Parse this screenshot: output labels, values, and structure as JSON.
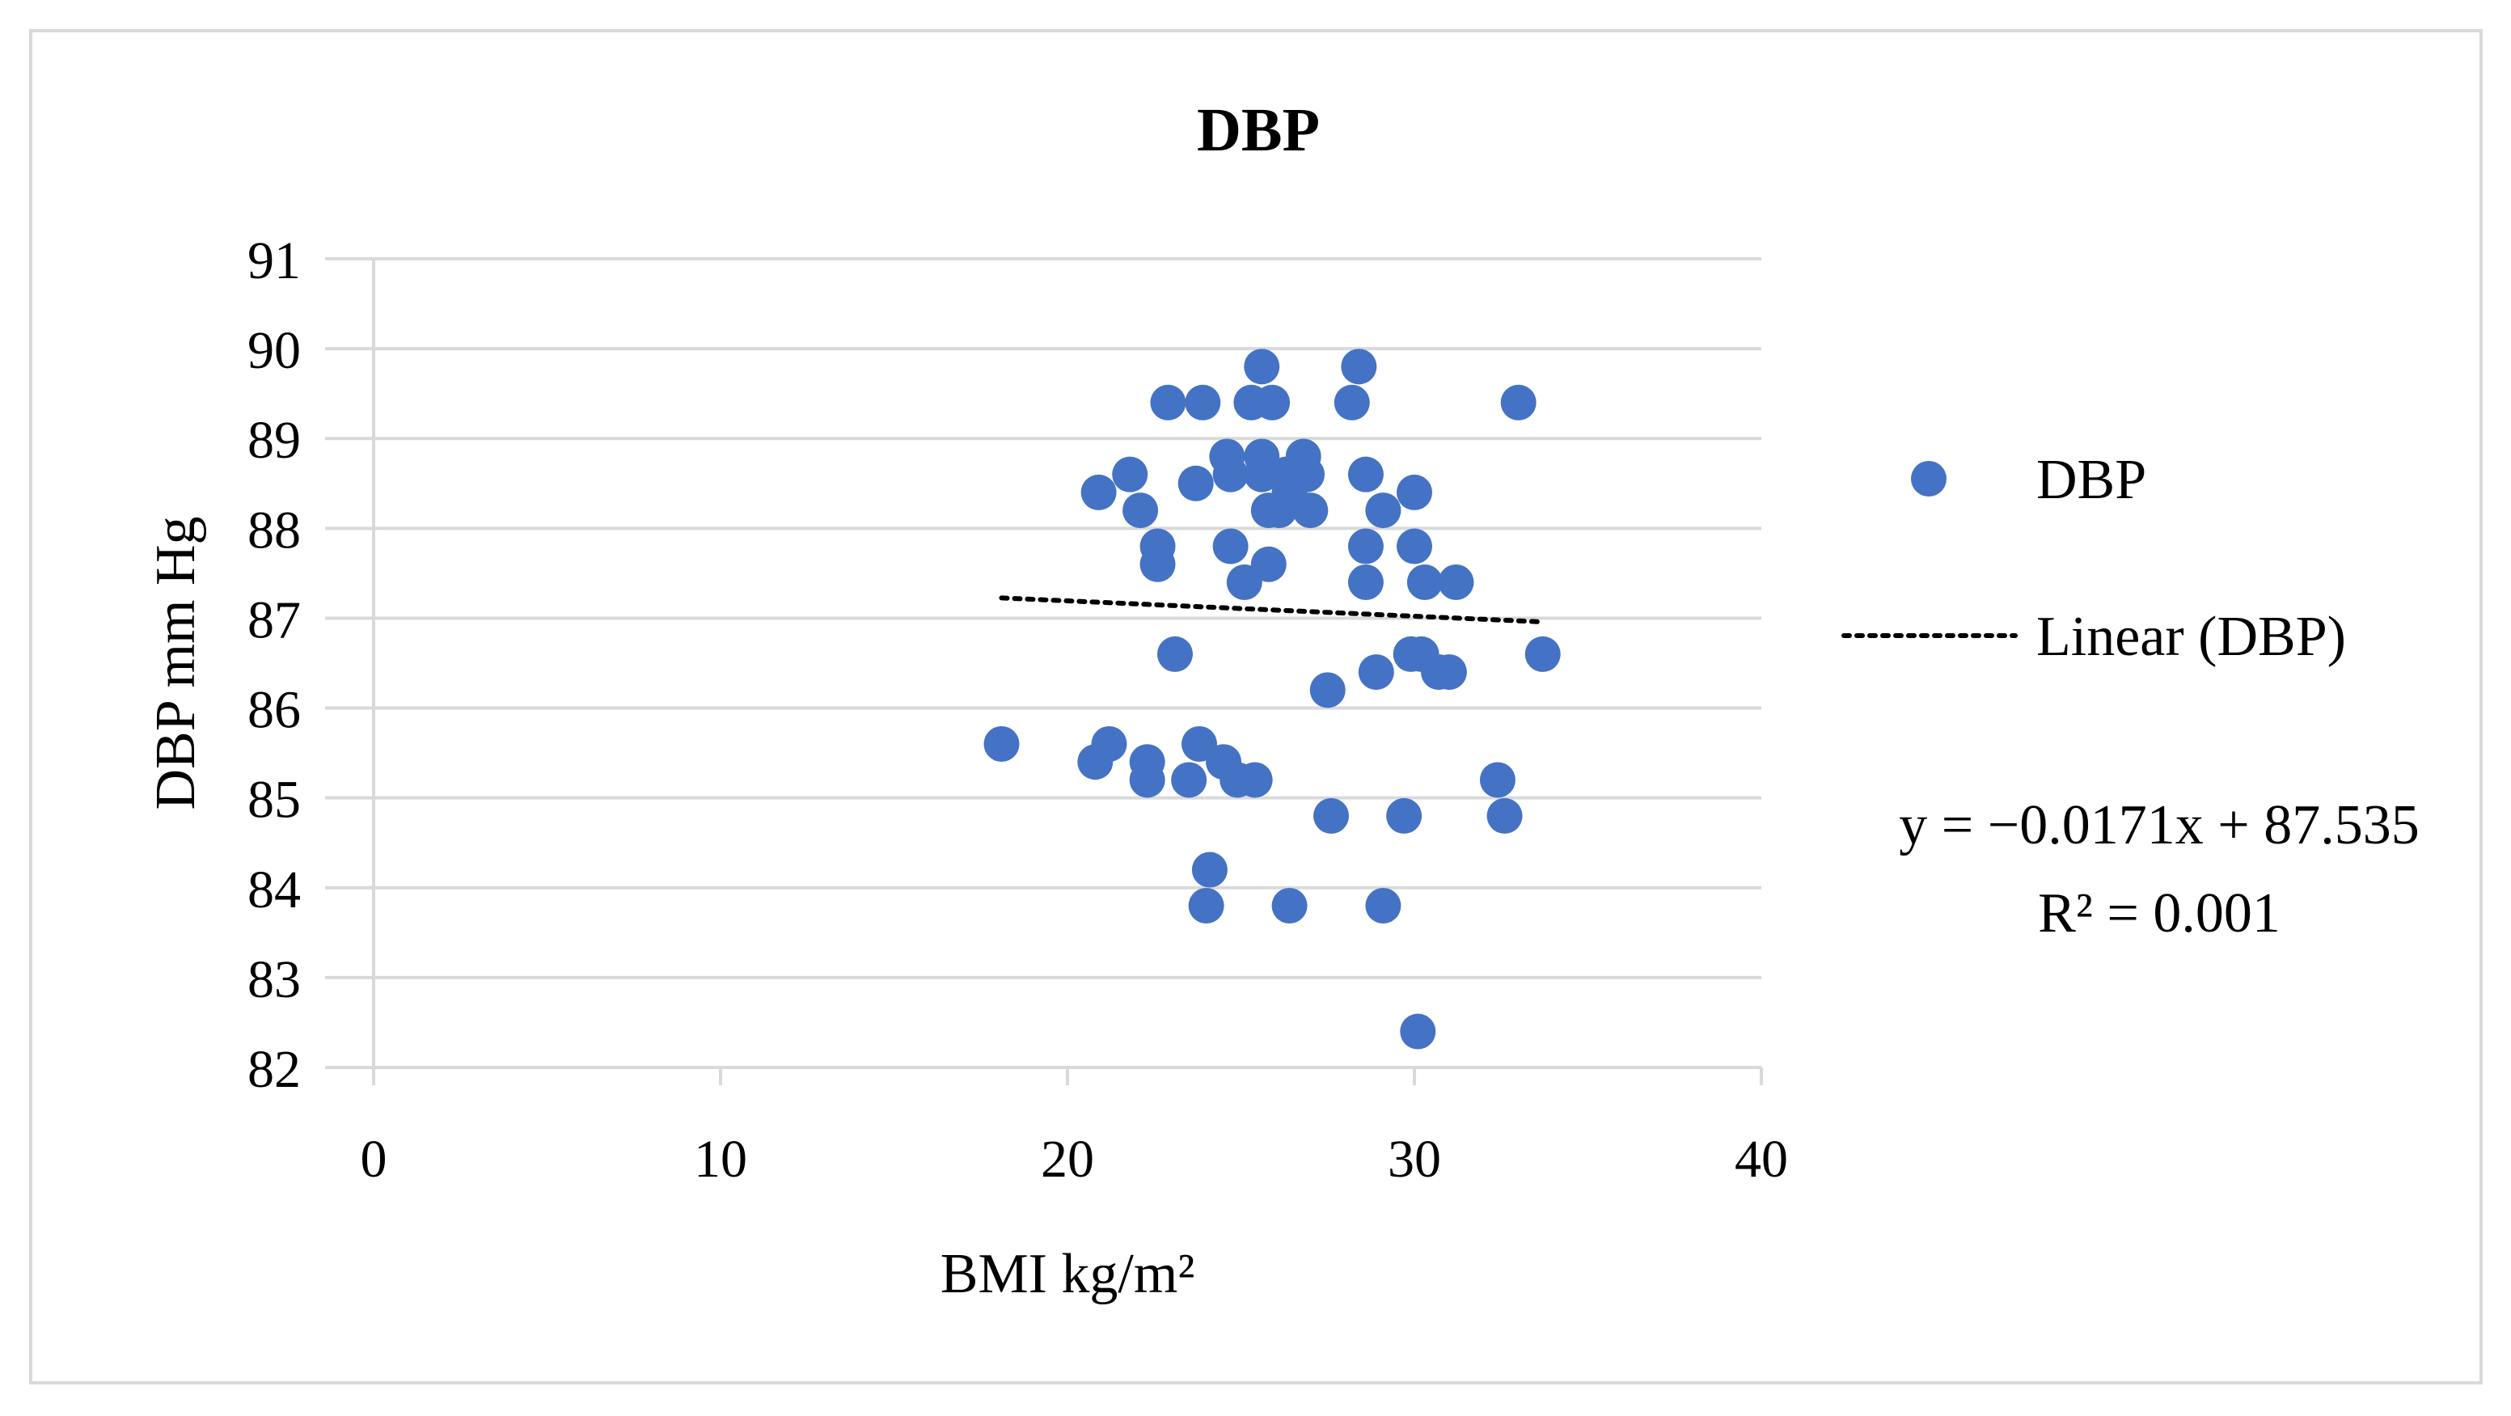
{
  "chart_data": {
    "type": "scatter",
    "title": "DBP",
    "xlabel": "BMI kg/m²",
    "ylabel": "DBP mm Hg",
    "xlim": [
      0,
      40
    ],
    "ylim": [
      82,
      91
    ],
    "xticks": [
      "0",
      "10",
      "20",
      "30",
      "40"
    ],
    "yticks": [
      "82",
      "83",
      "84",
      "85",
      "86",
      "87",
      "88",
      "89",
      "90",
      "91"
    ],
    "grid": "horizontal",
    "legend_position": "right",
    "colors": {
      "marker": "#4472C4",
      "trendline": "#000000",
      "grid": "#d9d9d9"
    },
    "series": [
      {
        "name": "DBP",
        "x": [
          18.1,
          20.8,
          21.2,
          22.3,
          22.3,
          23.5,
          23.8,
          24.5,
          24.9,
          25.4,
          27.6,
          29.7,
          32.4,
          32.6,
          24.1,
          24.0,
          26.4,
          29.1,
          30.1,
          23.1,
          27.5,
          28.9,
          29.9,
          30.2,
          30.7,
          31.0,
          33.7,
          22.6,
          22.6,
          24.7,
          25.8,
          28.6,
          28.6,
          30.0,
          30.3,
          31.2,
          25.1,
          20.9,
          21.8,
          22.1,
          23.7,
          24.7,
          25.8,
          26.4,
          26.1,
          29.1,
          27.0,
          30.0,
          24.6,
          25.6,
          26.8,
          26.9,
          28.6,
          25.6,
          26.3,
          22.9,
          23.9,
          25.3,
          25.9,
          28.2,
          33.0,
          25.6,
          28.4
        ],
        "y": [
          85.6,
          85.4,
          85.6,
          85.4,
          85.2,
          85.2,
          85.6,
          85.4,
          85.2,
          85.2,
          84.8,
          84.8,
          85.2,
          84.8,
          84.2,
          83.8,
          83.8,
          83.8,
          82.4,
          86.6,
          86.2,
          86.4,
          86.6,
          86.6,
          86.4,
          86.4,
          86.6,
          87.8,
          87.6,
          87.8,
          87.6,
          87.8,
          87.4,
          87.8,
          87.4,
          87.4,
          87.4,
          88.4,
          88.6,
          88.2,
          88.5,
          88.6,
          88.2,
          88.4,
          88.2,
          88.2,
          88.2,
          88.4,
          88.8,
          88.8,
          88.8,
          88.6,
          88.6,
          88.6,
          88.6,
          89.4,
          89.4,
          89.4,
          89.4,
          89.4,
          89.4,
          89.8,
          89.8
        ]
      }
    ],
    "trendline": {
      "name": "Linear (DBP)",
      "slope": -0.0171,
      "intercept": 87.535,
      "x_range": [
        18.1,
        33.7
      ],
      "equation_text": "y = −0.0171x + 87.535",
      "r2_text": "R² = 0.001"
    }
  }
}
